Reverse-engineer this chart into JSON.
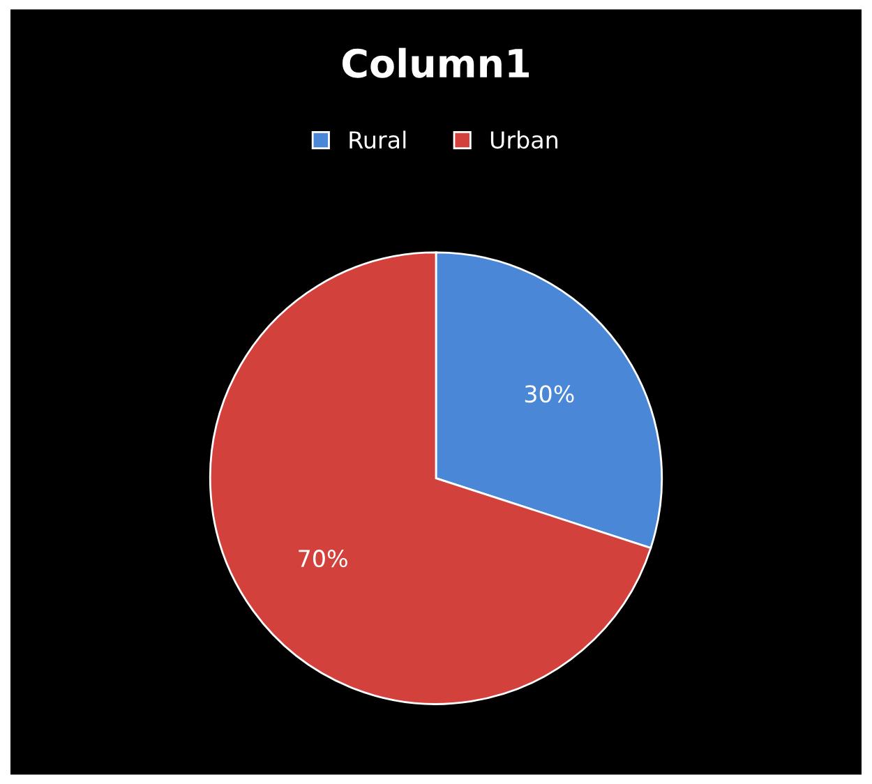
{
  "chart_data": {
    "type": "pie",
    "title": "Column1",
    "categories": [
      "Rural",
      "Urban"
    ],
    "values": [
      30,
      70
    ],
    "colors": [
      "#4a87d6",
      "#d3413d"
    ],
    "value_labels": [
      "30%",
      "70%"
    ],
    "legend": "top"
  }
}
